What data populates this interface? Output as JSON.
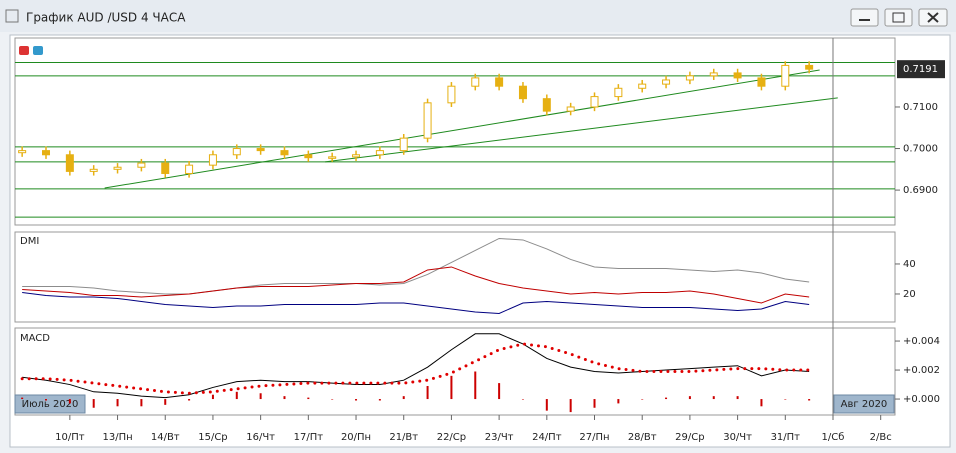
{
  "window_title": "График AUD /USD  4 ЧАСА",
  "chart_data": [
    {
      "type": "candlestick",
      "x": [
        -1,
        -0.5,
        0,
        0.5,
        1,
        1.5,
        2,
        2.5,
        3,
        3.5,
        4,
        4.5,
        5,
        5.5,
        6,
        6.5,
        7,
        7.5,
        8,
        8.5,
        9,
        9.5,
        10,
        10.5,
        11,
        11.5,
        12,
        12.5,
        13,
        13.5,
        14,
        14.5,
        15,
        15.5
      ],
      "open": [
        0.699,
        0.6995,
        0.6985,
        0.6945,
        0.695,
        0.6955,
        0.6965,
        0.694,
        0.696,
        0.6985,
        0.7,
        0.6995,
        0.6985,
        0.6978,
        0.698,
        0.6985,
        0.6995,
        0.7025,
        0.711,
        0.715,
        0.717,
        0.715,
        0.712,
        0.709,
        0.71,
        0.7125,
        0.7145,
        0.7155,
        0.7165,
        0.7175,
        0.7182,
        0.717,
        0.715,
        0.72
      ],
      "high": [
        0.7005,
        0.7005,
        0.6995,
        0.696,
        0.6965,
        0.6975,
        0.6975,
        0.697,
        0.6995,
        0.701,
        0.701,
        0.7005,
        0.6995,
        0.699,
        0.6995,
        0.7005,
        0.7035,
        0.712,
        0.716,
        0.718,
        0.718,
        0.716,
        0.713,
        0.711,
        0.7135,
        0.7155,
        0.7165,
        0.7175,
        0.7185,
        0.7192,
        0.7192,
        0.718,
        0.721,
        0.721
      ],
      "low": [
        0.698,
        0.6975,
        0.6935,
        0.6935,
        0.694,
        0.6945,
        0.693,
        0.693,
        0.695,
        0.6975,
        0.6985,
        0.6975,
        0.6968,
        0.6968,
        0.697,
        0.6975,
        0.6985,
        0.7015,
        0.71,
        0.714,
        0.714,
        0.711,
        0.708,
        0.708,
        0.709,
        0.7115,
        0.7135,
        0.7145,
        0.7155,
        0.7165,
        0.716,
        0.714,
        0.714,
        0.7181
      ],
      "close": [
        0.6995,
        0.6985,
        0.6945,
        0.695,
        0.6955,
        0.6965,
        0.694,
        0.696,
        0.6985,
        0.7,
        0.6995,
        0.6985,
        0.6978,
        0.698,
        0.6985,
        0.6995,
        0.7025,
        0.711,
        0.715,
        0.717,
        0.715,
        0.712,
        0.709,
        0.71,
        0.7125,
        0.7145,
        0.7155,
        0.7165,
        0.7175,
        0.7182,
        0.717,
        0.715,
        0.72,
        0.7191
      ],
      "color": "#e6b012",
      "xlim": [
        -1.15,
        17.3
      ],
      "xticks": [
        {
          "value": 0,
          "label": "10/Пт"
        },
        {
          "value": 1,
          "label": "13/Пн"
        },
        {
          "value": 2,
          "label": "14/Вт"
        },
        {
          "value": 3,
          "label": "15/Ср"
        },
        {
          "value": 4,
          "label": "16/Чт"
        },
        {
          "value": 5,
          "label": "17/Пт"
        },
        {
          "value": 6,
          "label": "20/Пн"
        },
        {
          "value": 7,
          "label": "21/Вт"
        },
        {
          "value": 8,
          "label": "22/Ср"
        },
        {
          "value": 9,
          "label": "23/Чт"
        },
        {
          "value": 10,
          "label": "24/Пт"
        },
        {
          "value": 11,
          "label": "27/Пн"
        },
        {
          "value": 12,
          "label": "28/Вт"
        },
        {
          "value": 13,
          "label": "29/Ср"
        },
        {
          "value": 14,
          "label": "30/Чт"
        },
        {
          "value": 15,
          "label": "31/Пт"
        },
        {
          "value": 16,
          "label": "1/Сб"
        },
        {
          "value": 17,
          "label": "2/Вс"
        }
      ],
      "ylim": [
        0.6816,
        0.7266
      ],
      "yticks": [
        {
          "value": 0.71,
          "label": "0.7100"
        },
        {
          "value": 0.7,
          "label": "0.7000"
        },
        {
          "value": 0.69,
          "label": "0.6900"
        }
      ],
      "last_price": 0.7191,
      "hlines": [
        0.7207,
        0.7175,
        0.7004,
        0.6968,
        0.6903,
        0.6835
      ],
      "trendlines": [
        {
          "x": [
            0.73,
            15.72
          ],
          "y": [
            0.6905,
            0.7189
          ]
        },
        {
          "x": [
            5.35,
            16.1
          ],
          "y": [
            0.6968,
            0.7122
          ]
        }
      ],
      "line_color": "#1f8a1f",
      "separator_x": 16,
      "period_labels": [
        "Июль 2020",
        "Авг 2020"
      ]
    },
    {
      "type": "line",
      "title": "DMI",
      "ylim": [
        1.33,
        61.3
      ],
      "yticks": [
        40,
        20
      ],
      "series": [
        {
          "color": "#8c8c8c",
          "style": "line",
          "values": [
            25,
            25,
            25,
            24,
            22,
            21,
            20,
            20,
            22,
            24,
            26,
            27,
            27,
            27,
            27,
            26,
            27,
            33,
            41,
            49,
            57,
            56,
            50,
            43,
            38,
            37,
            37,
            37,
            36,
            35,
            36,
            34,
            30,
            28
          ]
        },
        {
          "color": "#c00000",
          "style": "line",
          "values": [
            23,
            22,
            21,
            19,
            19,
            18,
            19,
            20,
            22,
            24,
            25,
            25,
            25,
            26,
            27,
            27,
            28,
            36,
            38,
            32,
            27,
            24,
            22,
            20,
            21,
            20,
            21,
            21,
            22,
            20,
            17,
            14,
            20,
            18
          ]
        },
        {
          "color": "#000080",
          "style": "line",
          "values": [
            21,
            19,
            18,
            18,
            17,
            15,
            13,
            12,
            11,
            12,
            12,
            13,
            13,
            13,
            13,
            14,
            14,
            12,
            10,
            8,
            7,
            14,
            15,
            14,
            13,
            12,
            11,
            11,
            11,
            10,
            9,
            10,
            15,
            13
          ]
        }
      ]
    },
    {
      "type": "line",
      "title": "MACD",
      "ylim": [
        -0.0011,
        0.0049
      ],
      "yticks": [
        {
          "value": 0.004,
          "label": "+0.004"
        },
        {
          "value": 0.002,
          "label": "+0.002"
        },
        {
          "value": 0,
          "label": "+0.000"
        }
      ],
      "series": [
        {
          "color": "#cc0000",
          "style": "bar",
          "values": [
            0.0001,
            -0.0001,
            -0.0003,
            -0.0006,
            -0.0005,
            -0.0005,
            -0.0004,
            -0.0001,
            0.0003,
            0.0005,
            0.0004,
            0.0002,
            0.0001,
            0,
            -0.0001,
            -0.0001,
            0.0002,
            0.0009,
            0.0016,
            0.0019,
            0.0011,
            0,
            -0.0008,
            -0.0009,
            -0.0006,
            -0.0003,
            0,
            0.0001,
            0.0002,
            0.0002,
            0.0002,
            -0.0005,
            0,
            -0.0001
          ]
        },
        {
          "color": "#000000",
          "style": "line",
          "values": [
            0.0015,
            0.0013,
            0.001,
            0.0005,
            0.0004,
            0.0002,
            0.0001,
            0.0003,
            0.0008,
            0.0012,
            0.0013,
            0.0012,
            0.0012,
            0.0011,
            0.001,
            0.001,
            0.0013,
            0.0022,
            0.0034,
            0.0045,
            0.0045,
            0.0038,
            0.0028,
            0.0022,
            0.0019,
            0.0018,
            0.0019,
            0.002,
            0.0021,
            0.0022,
            0.0023,
            0.0016,
            0.002,
            0.0019
          ]
        },
        {
          "color": "#e00000",
          "style": "dots",
          "values": [
            0.0014,
            0.0014,
            0.0013,
            0.0011,
            0.0009,
            0.0007,
            0.0005,
            0.0004,
            0.0005,
            0.0007,
            0.0009,
            0.001,
            0.0011,
            0.0011,
            0.0011,
            0.0011,
            0.0011,
            0.0013,
            0.0018,
            0.0026,
            0.0034,
            0.0038,
            0.0036,
            0.0031,
            0.0025,
            0.0021,
            0.0019,
            0.0019,
            0.0019,
            0.002,
            0.0021,
            0.0021,
            0.002,
            0.002
          ]
        }
      ]
    }
  ]
}
